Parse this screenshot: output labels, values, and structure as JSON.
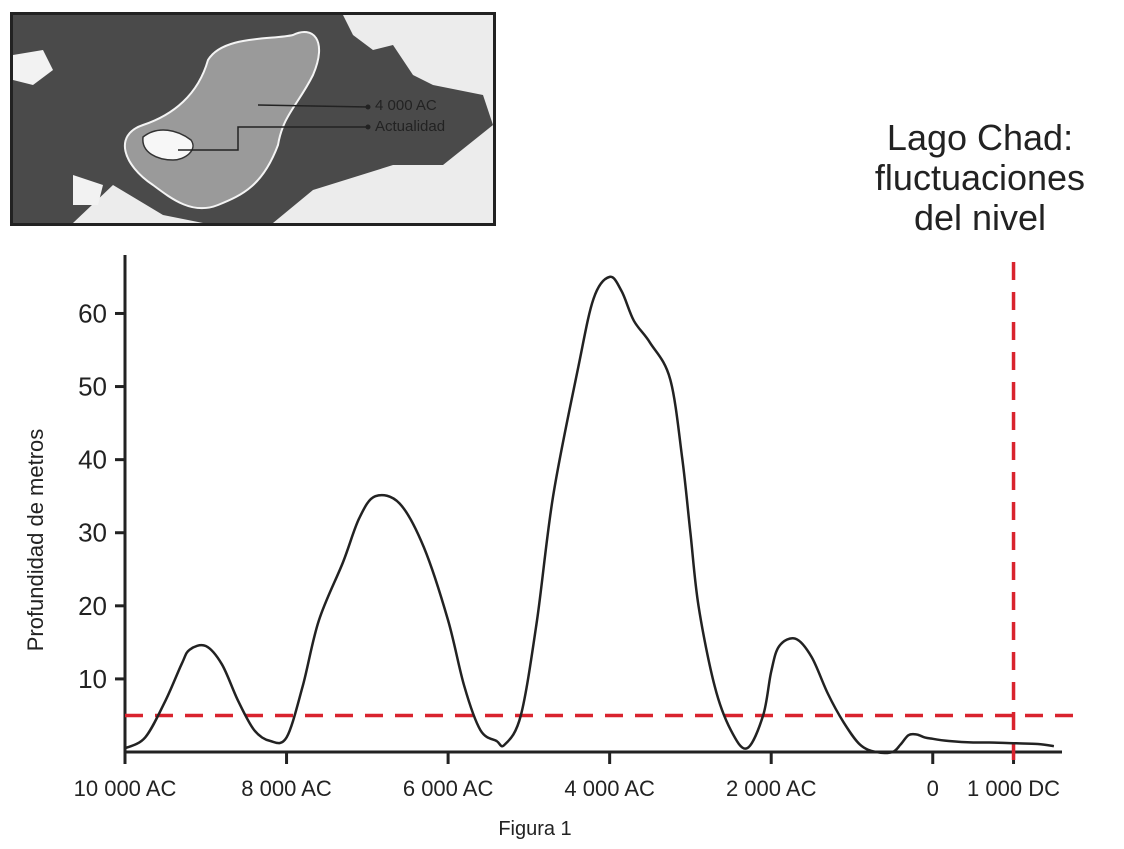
{
  "inset": {
    "labels": [
      "4 000 AC",
      "Actualidad"
    ]
  },
  "chart_data": {
    "type": "line",
    "title_lines": [
      "Lago Chad:",
      "fluctuaciones",
      "del nivel"
    ],
    "xlabel": "",
    "ylabel": "Profundidad de metros",
    "caption": "Figura 1",
    "x_tick_labels": [
      "10 000 AC",
      "8 000 AC",
      "6 000 AC",
      "4 000 AC",
      "2 000 AC",
      "0",
      "1 000 DC"
    ],
    "x_tick_values": [
      -10000,
      -8000,
      -6000,
      -4000,
      -2000,
      0,
      1000
    ],
    "y_ticks": [
      10,
      20,
      30,
      40,
      50,
      60
    ],
    "xlim": [
      -10000,
      1600
    ],
    "ylim": [
      0,
      68
    ],
    "series": [
      {
        "color": "#222222",
        "x": [
          -10000,
          -9750,
          -9500,
          -9300,
          -9200,
          -9000,
          -8800,
          -8600,
          -8400,
          -8200,
          -8000,
          -7800,
          -7600,
          -7300,
          -7100,
          -6900,
          -6600,
          -6300,
          -6000,
          -5800,
          -5600,
          -5400,
          -5300,
          -5100,
          -4900,
          -4700,
          -4400,
          -4200,
          -4000,
          -3850,
          -3700,
          -3500,
          -3250,
          -3100,
          -3000,
          -2900,
          -2700,
          -2500,
          -2300,
          -2100,
          -2000,
          -1900,
          -1700,
          -1500,
          -1300,
          -1100,
          -900,
          -700,
          -500,
          -400,
          -300,
          -200,
          -100,
          0,
          200,
          500,
          700,
          1000,
          1300,
          1500
        ],
        "y": [
          0.5,
          2,
          7,
          12,
          14,
          14.5,
          12,
          7,
          3,
          1.5,
          2,
          9,
          18,
          26,
          32,
          35,
          34,
          28,
          18,
          9,
          3,
          1.5,
          1,
          5,
          18,
          35,
          52,
          62,
          65,
          63,
          59,
          56,
          51,
          40,
          30,
          20,
          9,
          3,
          0.5,
          5,
          11,
          14.5,
          15.5,
          13,
          8,
          4,
          1,
          0,
          0,
          1,
          2.3,
          2.4,
          2,
          1.8,
          1.5,
          1.3,
          1.3,
          1.2,
          1.1,
          0.8
        ]
      }
    ],
    "reference_lines": [
      {
        "orientation": "horizontal",
        "value": 5,
        "color": "#d9232e"
      },
      {
        "orientation": "vertical",
        "value": 1000,
        "color": "#d9232e"
      }
    ],
    "grid": false,
    "legend": "none"
  }
}
